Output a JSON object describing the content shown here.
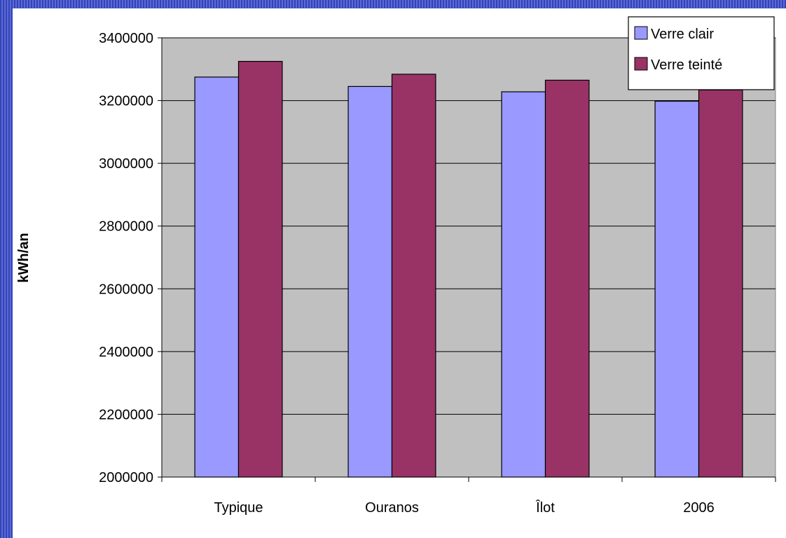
{
  "chart_data": {
    "type": "bar",
    "title": "",
    "xlabel": "",
    "ylabel": "kWh/an",
    "categories": [
      "Typique",
      "Ouranos",
      "Îlot",
      "2006"
    ],
    "series": [
      {
        "name": "Verre clair",
        "color": "#9999ff",
        "values": [
          3275000,
          3245000,
          3228000,
          3198000
        ]
      },
      {
        "name": "Verre teinté",
        "color": "#993366",
        "values": [
          3325000,
          3284000,
          3265000,
          3234000
        ]
      }
    ],
    "ylim": [
      2000000,
      3400000
    ],
    "yticks": [
      2000000,
      2200000,
      2400000,
      2600000,
      2800000,
      3000000,
      3200000,
      3400000
    ],
    "grid": true,
    "plot_background": "#c0c0c0",
    "legend_position": "top-right"
  }
}
